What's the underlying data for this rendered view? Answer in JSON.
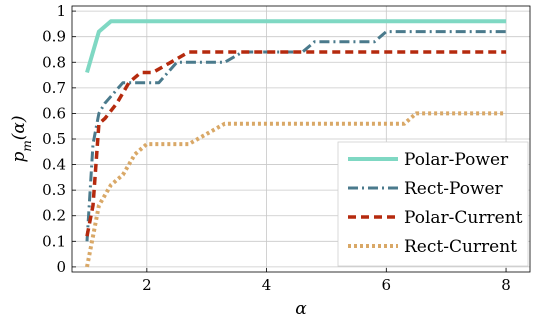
{
  "chart_data": {
    "type": "line",
    "xlabel": "α",
    "ylabel": "p_m(α)",
    "xlim": [
      0.75,
      8.4
    ],
    "ylim": [
      -0.02,
      1.02
    ],
    "xticks": [
      2,
      4,
      6,
      8
    ],
    "yticks": [
      0,
      0.1,
      0.2,
      0.3,
      0.4,
      0.5,
      0.6,
      0.7,
      0.8,
      0.9,
      1
    ],
    "grid": true,
    "legend_position": "bottom-right",
    "series": [
      {
        "name": "Polar-Power",
        "color": "#7fd8c3",
        "style": "solid",
        "x": [
          1.0,
          1.2,
          1.4,
          8.0
        ],
        "y": [
          0.76,
          0.92,
          0.96,
          0.96
        ]
      },
      {
        "name": "Rect-Power",
        "color": "#4a7a8c",
        "style": "dashdot",
        "x": [
          1.0,
          1.1,
          1.2,
          1.3,
          1.45,
          1.6,
          1.75,
          2.0,
          2.2,
          2.5,
          2.8,
          3.0,
          3.3,
          3.6,
          4.0,
          4.6,
          4.8,
          5.0,
          5.5,
          5.8,
          6.0,
          6.5,
          7.0,
          8.0
        ],
        "y": [
          0.1,
          0.48,
          0.6,
          0.64,
          0.68,
          0.72,
          0.72,
          0.72,
          0.72,
          0.8,
          0.8,
          0.8,
          0.8,
          0.84,
          0.84,
          0.84,
          0.88,
          0.88,
          0.88,
          0.88,
          0.92,
          0.92,
          0.92,
          0.92
        ]
      },
      {
        "name": "Polar-Current",
        "color": "#b52a0e",
        "style": "dashed",
        "x": [
          1.0,
          1.1,
          1.2,
          1.3,
          1.5,
          1.7,
          1.9,
          2.1,
          2.4,
          2.7,
          3.0,
          3.5,
          4.0,
          5.0,
          6.0,
          7.0,
          8.0
        ],
        "y": [
          0.12,
          0.24,
          0.56,
          0.58,
          0.64,
          0.72,
          0.76,
          0.76,
          0.8,
          0.84,
          0.84,
          0.84,
          0.84,
          0.84,
          0.84,
          0.84,
          0.84
        ]
      },
      {
        "name": "Rect-Current",
        "color": "#d9a867",
        "style": "dotted",
        "x": [
          1.0,
          1.1,
          1.2,
          1.4,
          1.6,
          1.8,
          2.0,
          2.3,
          2.7,
          3.0,
          3.3,
          4.0,
          5.0,
          6.0,
          6.3,
          6.5,
          7.0,
          8.0
        ],
        "y": [
          0.0,
          0.12,
          0.24,
          0.32,
          0.36,
          0.44,
          0.48,
          0.48,
          0.48,
          0.52,
          0.56,
          0.56,
          0.56,
          0.56,
          0.56,
          0.6,
          0.6,
          0.6
        ]
      }
    ]
  }
}
